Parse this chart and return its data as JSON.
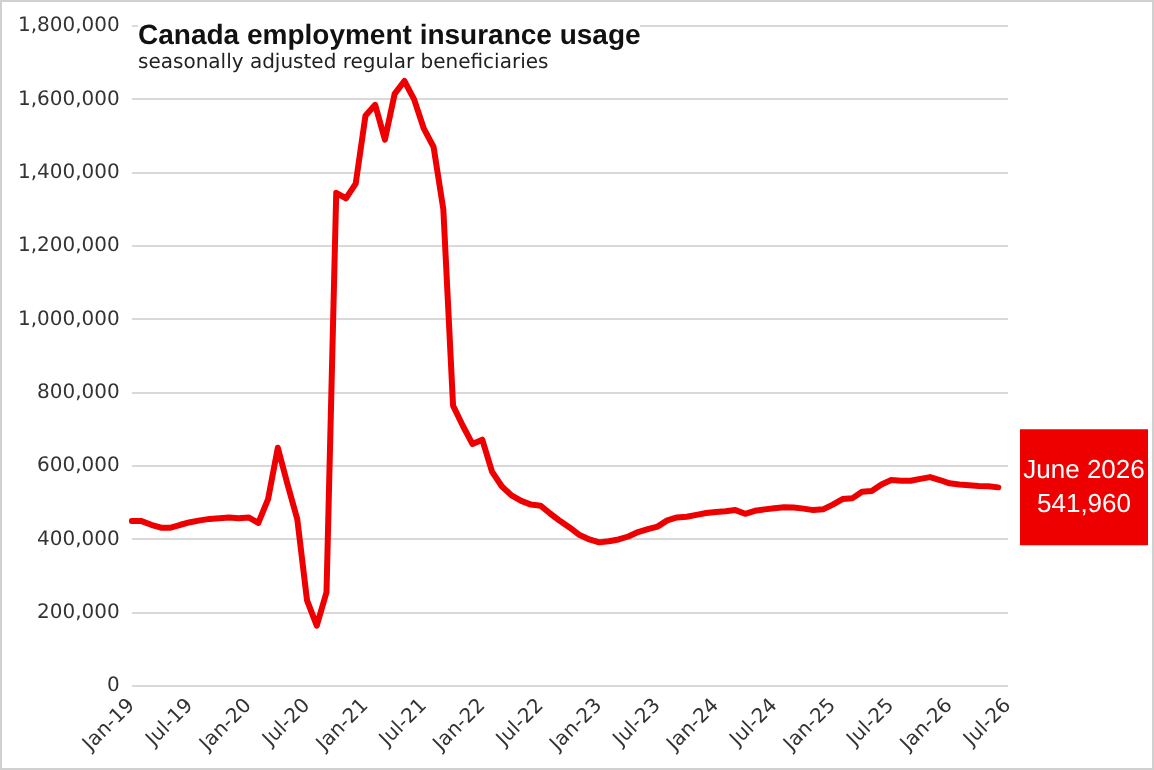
{
  "chart_data": {
    "type": "line",
    "title": "Canada employment insurance usage",
    "subtitle": "seasonally adjusted regular beneficiaries",
    "categories": [
      "Jan-19",
      null,
      null,
      null,
      null,
      null,
      "Jul-19",
      null,
      null,
      null,
      null,
      null,
      "Jan-20",
      null,
      null,
      null,
      null,
      null,
      "Jul-20",
      null,
      null,
      null,
      null,
      null,
      "Jan-21",
      null,
      null,
      null,
      null,
      null,
      "Jul-21",
      null,
      null,
      null,
      null,
      null,
      "Jan-22",
      null,
      null,
      null,
      null,
      null,
      "Jul-22",
      null,
      null,
      null,
      null,
      null,
      "Jan-23",
      null,
      null,
      null,
      null,
      null,
      "Jul-23",
      null,
      null,
      null,
      null,
      null,
      "Jan-24",
      null,
      null,
      null,
      null,
      null,
      "Jul-24",
      null,
      null,
      null,
      null,
      null,
      "Jan-25",
      null,
      null,
      null,
      null,
      null,
      "Jul-25",
      null,
      null,
      null,
      null,
      null,
      "Jan-26",
      null,
      null,
      null,
      null,
      null,
      "Jul-26"
    ],
    "series": [
      {
        "color": "#ee0000",
        "values": [
          450000,
          450000,
          440000,
          432000,
          432000,
          440000,
          447000,
          452000,
          456000,
          458000,
          460000,
          458000,
          460000,
          445000,
          510000,
          650000,
          550000,
          455000,
          234000,
          165000,
          256000,
          1345000,
          1330000,
          1370000,
          1555000,
          1585000,
          1490000,
          1615000,
          1650000,
          1600000,
          1520000,
          1470000,
          1300000,
          765000,
          710000,
          660000,
          672000,
          585000,
          545000,
          520000,
          505000,
          495000,
          492000,
          470000,
          450000,
          432000,
          412000,
          400000,
          392000,
          395000,
          400000,
          408000,
          420000,
          428000,
          435000,
          452000,
          460000,
          462000,
          467000,
          472000,
          475000,
          477000,
          480000,
          470000,
          478000,
          482000,
          485000,
          488000,
          487000,
          484000,
          480000,
          482000,
          495000,
          510000,
          512000,
          530000,
          532000,
          550000,
          562000,
          560000,
          560000,
          565000,
          570000,
          562000,
          553000,
          550000,
          548000,
          546000,
          545000,
          542000,
          null
        ]
      }
    ],
    "ylim": [
      0,
      1800000
    ],
    "yticks": [
      0,
      {
        "value": 200000,
        "label": "200,000"
      },
      {
        "value": 400000,
        "label": "400,000"
      },
      {
        "value": 600000,
        "label": "600,000"
      },
      {
        "value": 800000,
        "label": "800,000"
      },
      {
        "value": 1000000,
        "label": "1,000,000"
      },
      {
        "value": 1200000,
        "label": "1,200,000"
      },
      {
        "value": 1400000,
        "label": "1,400,000"
      },
      {
        "value": 1600000,
        "label": "1,600,000"
      },
      {
        "value": 1800000,
        "label": "1,800,000"
      }
    ],
    "grid": "y",
    "legend": false,
    "marker": "none",
    "line_style": "solid",
    "annotations": [
      "June 2026\n541,960"
    ]
  }
}
